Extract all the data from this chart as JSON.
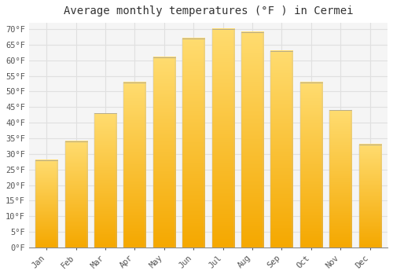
{
  "title": "Average monthly temperatures (°F ) in Cermei",
  "months": [
    "Jan",
    "Feb",
    "Mar",
    "Apr",
    "May",
    "Jun",
    "Jul",
    "Aug",
    "Sep",
    "Oct",
    "Nov",
    "Dec"
  ],
  "values": [
    28,
    34,
    43,
    53,
    61,
    67,
    70,
    69,
    63,
    53,
    44,
    33
  ],
  "bar_color_bottom": "#F5A800",
  "bar_color_top": "#FFD966",
  "bar_edge_color": "#AAAAAA",
  "ylim": [
    0,
    72
  ],
  "yticks": [
    0,
    5,
    10,
    15,
    20,
    25,
    30,
    35,
    40,
    45,
    50,
    55,
    60,
    65,
    70
  ],
  "ytick_labels": [
    "0°F",
    "5°F",
    "10°F",
    "15°F",
    "20°F",
    "25°F",
    "30°F",
    "35°F",
    "40°F",
    "45°F",
    "50°F",
    "55°F",
    "60°F",
    "65°F",
    "70°F"
  ],
  "title_fontsize": 10,
  "tick_fontsize": 7.5,
  "background_color": "#ffffff",
  "plot_bg_color": "#f5f5f5",
  "grid_color": "#e0e0e0",
  "font_family": "monospace",
  "bar_width": 0.75
}
